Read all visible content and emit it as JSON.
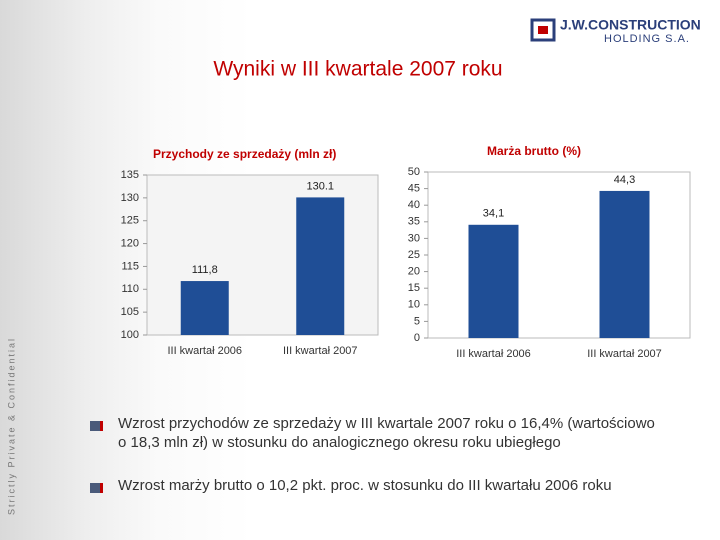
{
  "logo": {
    "name": "J.W.CONSTRUCTION",
    "subtitle": "HOLDING S.A."
  },
  "title": "Wyniki w III kwartale 2007 roku",
  "side_text": "Strictly Private & Confidential",
  "chart_data": [
    {
      "type": "bar",
      "title": "Przychody ze sprzedaży (mln zł)",
      "categories": [
        "III kwartał 2006",
        "III kwartał 2007"
      ],
      "values": [
        111.8,
        130.1
      ],
      "value_labels": [
        "111,8",
        "130.1"
      ],
      "color": "#1f4e96",
      "ylim": [
        100,
        135
      ],
      "yticks": [
        100,
        105,
        110,
        115,
        120,
        125,
        130,
        135
      ]
    },
    {
      "type": "bar",
      "title": "Marża brutto (%)",
      "categories": [
        "III kwartał 2006",
        "III kwartał 2007"
      ],
      "values": [
        34.1,
        44.3
      ],
      "value_labels": [
        "34,1",
        "44,3"
      ],
      "color": "#1f4e96",
      "ylim": [
        0,
        50
      ],
      "yticks": [
        0,
        5,
        10,
        15,
        20,
        25,
        30,
        35,
        40,
        45,
        50
      ]
    }
  ],
  "bullets": [
    "Wzrost przychodów ze sprzedaży w III kwartale 2007 roku o 16,4% (wartościowo o 18,3 mln zł) w stosunku do analogicznego okresu roku ubiegłego",
    "Wzrost marży brutto o 10,2 pkt. proc. w stosunku do III kwartału 2006 roku"
  ]
}
